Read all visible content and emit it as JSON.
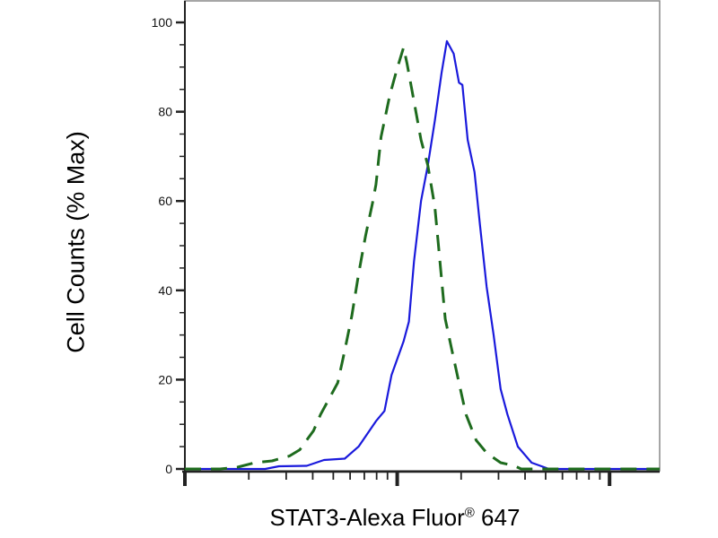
{
  "chart_data": {
    "type": "line",
    "title": "",
    "xlabel": "STAT3-Alexa Fluor",
    "xlabel_mark": "®",
    "xlabel_suffix": " 647",
    "ylabel": "Cell Counts (% Max)",
    "xscale": "log",
    "x_unit": "decades (major ticks unlabeled)",
    "xlim": [
      0,
      2.236
    ],
    "ylim": [
      0,
      100
    ],
    "yticks": [
      0,
      20,
      40,
      60,
      80,
      100
    ],
    "grid": false,
    "legend": "none",
    "series": [
      {
        "color": "#1a1adc",
        "style": "solid",
        "x": [
          0,
          0.378,
          0.443,
          0.574,
          0.655,
          0.753,
          0.818,
          0.9,
          0.94,
          0.973,
          1.03,
          1.055,
          1.079,
          1.112,
          1.144,
          1.177,
          1.209,
          1.234,
          1.266,
          1.291,
          1.307,
          1.332,
          1.364,
          1.389,
          1.421,
          1.454,
          1.487,
          1.519,
          1.568,
          1.633,
          1.715,
          2.236
        ],
        "y": [
          0,
          0,
          0.6,
          0.7,
          2,
          2.3,
          5,
          10.7,
          13,
          21,
          28.6,
          33,
          46.5,
          60,
          68,
          78,
          88.7,
          95.8,
          93,
          86.5,
          86,
          73.7,
          66.5,
          55,
          40.8,
          30,
          17.9,
          12.2,
          5,
          1.4,
          0,
          0
        ]
      },
      {
        "color": "#1e6b1e",
        "style": "dashed",
        "x": [
          0,
          0.166,
          0.248,
          0.329,
          0.411,
          0.492,
          0.541,
          0.606,
          0.639,
          0.688,
          0.72,
          0.753,
          0.786,
          0.818,
          0.851,
          0.883,
          0.9,
          0.924,
          0.965,
          0.998,
          1.03,
          1.046,
          1.079,
          1.112,
          1.144,
          1.177,
          1.193,
          1.226,
          1.258,
          1.291,
          1.324,
          1.372,
          1.421,
          1.487,
          1.552,
          1.584,
          2.236
        ],
        "y": [
          0,
          0,
          0.4,
          1.4,
          1.8,
          2.9,
          4.3,
          8.6,
          12.2,
          16.5,
          19.3,
          26.5,
          34.3,
          43.6,
          52.2,
          59.4,
          63.7,
          74.4,
          83.7,
          89.4,
          94.4,
          90.8,
          82.3,
          73.7,
          68,
          58.7,
          50.8,
          33.6,
          26.5,
          19.3,
          12.2,
          6.4,
          3.6,
          1.4,
          0.7,
          0,
          0
        ]
      }
    ]
  }
}
